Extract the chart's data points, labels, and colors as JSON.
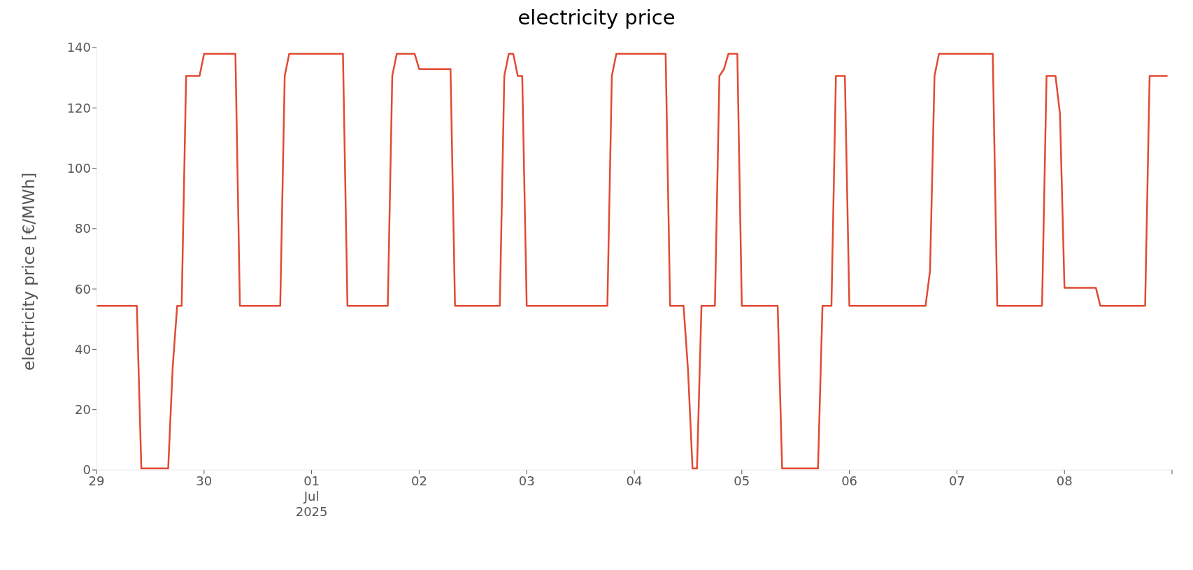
{
  "chart_data": {
    "type": "line",
    "title": "electricity price",
    "ylabel": "electricity price [€/MWh]",
    "x": [
      "2025-06-29T00:00",
      "2025-06-29T09:00",
      "2025-06-29T10:00",
      "2025-06-29T16:00",
      "2025-06-29T17:00",
      "2025-06-29T18:00",
      "2025-06-29T19:00",
      "2025-06-29T20:00",
      "2025-06-29T23:00",
      "2025-06-30T00:00",
      "2025-06-30T07:00",
      "2025-06-30T08:00",
      "2025-06-30T17:00",
      "2025-06-30T18:00",
      "2025-06-30T19:00",
      "2025-07-01T07:00",
      "2025-07-01T08:00",
      "2025-07-01T17:00",
      "2025-07-01T18:00",
      "2025-07-01T19:00",
      "2025-07-01T23:00",
      "2025-07-02T00:00",
      "2025-07-02T07:00",
      "2025-07-02T08:00",
      "2025-07-02T18:00",
      "2025-07-02T19:00",
      "2025-07-02T20:00",
      "2025-07-02T21:00",
      "2025-07-02T22:00",
      "2025-07-02T23:00",
      "2025-07-03T00:00",
      "2025-07-03T18:00",
      "2025-07-03T19:00",
      "2025-07-03T20:00",
      "2025-07-04T07:00",
      "2025-07-04T08:00",
      "2025-07-04T11:00",
      "2025-07-04T12:00",
      "2025-07-04T13:00",
      "2025-07-04T14:00",
      "2025-07-04T15:00",
      "2025-07-04T18:00",
      "2025-07-04T19:00",
      "2025-07-04T20:00",
      "2025-07-04T21:00",
      "2025-07-04T23:00",
      "2025-07-05T00:00",
      "2025-07-05T08:00",
      "2025-07-05T09:00",
      "2025-07-05T17:00",
      "2025-07-05T18:00",
      "2025-07-05T20:00",
      "2025-07-05T21:00",
      "2025-07-05T23:00",
      "2025-07-06T00:00",
      "2025-07-06T17:00",
      "2025-07-06T18:00",
      "2025-07-06T19:00",
      "2025-07-06T20:00",
      "2025-07-07T08:00",
      "2025-07-07T09:00",
      "2025-07-07T19:00",
      "2025-07-07T20:00",
      "2025-07-07T22:00",
      "2025-07-07T23:00",
      "2025-07-08T00:00",
      "2025-07-08T07:00",
      "2025-07-08T08:00",
      "2025-07-08T18:00",
      "2025-07-08T19:00",
      "2025-07-08T23:00"
    ],
    "series": [
      {
        "color": "#e24a33",
        "values": [
          54.4,
          54.4,
          0.5,
          0.5,
          34,
          54.4,
          54.4,
          130.6,
          130.6,
          137.9,
          137.9,
          54.4,
          54.4,
          130.6,
          137.9,
          137.9,
          54.4,
          54.4,
          130.6,
          137.9,
          137.9,
          132.9,
          132.9,
          54.4,
          54.4,
          130.6,
          137.9,
          137.9,
          130.6,
          130.6,
          54.4,
          54.4,
          130.6,
          137.9,
          137.9,
          54.4,
          54.4,
          33,
          0.5,
          0.5,
          54.4,
          54.4,
          130.6,
          132.8,
          137.9,
          137.9,
          54.4,
          54.4,
          0.5,
          0.5,
          54.4,
          54.4,
          130.6,
          130.6,
          54.4,
          54.4,
          66,
          130.6,
          137.9,
          137.9,
          54.4,
          54.4,
          130.6,
          130.6,
          118,
          60.4,
          60.4,
          54.4,
          54.4,
          130.6,
          130.6
        ]
      }
    ],
    "xlim": [
      "2025-06-29T00:00",
      "2025-07-09T00:00"
    ],
    "xticks": [
      {
        "value": "2025-06-29",
        "label": "29"
      },
      {
        "value": "2025-06-30",
        "label": "30"
      },
      {
        "value": "2025-07-01",
        "label": "01\nJul\n2025"
      },
      {
        "value": "2025-07-02",
        "label": "02"
      },
      {
        "value": "2025-07-03",
        "label": "03"
      },
      {
        "value": "2025-07-04",
        "label": "04"
      },
      {
        "value": "2025-07-05",
        "label": "05"
      },
      {
        "value": "2025-07-06",
        "label": "06"
      },
      {
        "value": "2025-07-07",
        "label": "07"
      },
      {
        "value": "2025-07-08",
        "label": "08"
      },
      {
        "value": "2025-07-09",
        "label": null
      }
    ],
    "ylim": [
      0,
      140
    ],
    "yticks": [
      0,
      20,
      40,
      60,
      80,
      100,
      120,
      140
    ],
    "grid": false,
    "legend": false,
    "marker": "none",
    "line_style": "solid"
  }
}
